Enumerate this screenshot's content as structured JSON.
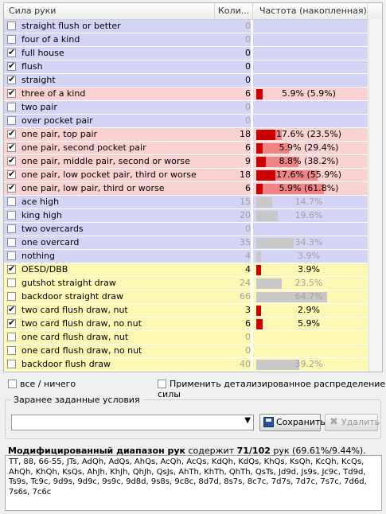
{
  "header": {
    "hand": "Сила руки",
    "count": "Коли...",
    "freq": "Частота (накопленная)"
  },
  "rows": [
    {
      "label": "straight flush or better",
      "checked": false,
      "count": "0",
      "freq": "",
      "bar": 0,
      "bg": "#d4d4f7",
      "barColor": "",
      "dim": true
    },
    {
      "label": "four of a kind",
      "checked": false,
      "count": "0",
      "freq": "",
      "bar": 0,
      "bg": "#d4d4f7",
      "barColor": "",
      "dim": true
    },
    {
      "label": "full house",
      "checked": true,
      "count": "0",
      "freq": "",
      "bar": 0,
      "bg": "#d4d4f7",
      "barColor": "",
      "dim": false
    },
    {
      "label": "flush",
      "checked": true,
      "count": "0",
      "freq": "",
      "bar": 0,
      "bg": "#d4d4f7",
      "barColor": "",
      "dim": false
    },
    {
      "label": "straight",
      "checked": true,
      "count": "0",
      "freq": "",
      "bar": 0,
      "bg": "#d4d4f7",
      "barColor": "",
      "dim": false
    },
    {
      "label": "three of a kind",
      "checked": true,
      "count": "6",
      "freq": "5.9% (5.9%)",
      "bar": 0.059,
      "bg": "#fbd2d2",
      "barColor": "#cc0000",
      "dim": false
    },
    {
      "label": "two pair",
      "checked": false,
      "count": "0",
      "freq": "",
      "bar": 0,
      "bg": "#d4d4f7",
      "barColor": "",
      "dim": true
    },
    {
      "label": "over pocket pair",
      "checked": false,
      "count": "0",
      "freq": "",
      "bar": 0,
      "bg": "#d4d4f7",
      "barColor": "",
      "dim": true
    },
    {
      "label": "one pair, top pair",
      "checked": true,
      "count": "18",
      "freq": "17.6% (23.5%)",
      "bar": 0.176,
      "cum": 0.235,
      "bg": "#fbd2d2",
      "barColor": "#cc0000",
      "dim": false
    },
    {
      "label": "one pair, second pocket pair",
      "checked": true,
      "count": "6",
      "freq": "5.9% (29.4%)",
      "bar": 0.059,
      "cum": 0.294,
      "bg": "#fbd2d2",
      "barColor": "#cc0000",
      "dim": false
    },
    {
      "label": "one pair, middle pair, second or worse",
      "checked": true,
      "count": "9",
      "freq": "8.8% (38.2%)",
      "bar": 0.088,
      "cum": 0.382,
      "bg": "#fbd2d2",
      "barColor": "#cc0000",
      "dim": false
    },
    {
      "label": "one pair, low pocket pair, third or worse",
      "checked": true,
      "count": "18",
      "freq": "17.6% (55.9%)",
      "bar": 0.176,
      "cum": 0.559,
      "bg": "#fbd2d2",
      "barColor": "#cc0000",
      "dim": false
    },
    {
      "label": "one pair, low pair, third or worse",
      "checked": true,
      "count": "6",
      "freq": "5.9% (61.8%)",
      "bar": 0.059,
      "cum": 0.618,
      "bg": "#fbd2d2",
      "barColor": "#cc0000",
      "dim": false
    },
    {
      "label": "ace high",
      "checked": false,
      "count": "15",
      "freq": "14.7%",
      "bar": 0.147,
      "bg": "#d4d4f7",
      "barColor": "#c8c8c8",
      "dim": true
    },
    {
      "label": "king high",
      "checked": false,
      "count": "20",
      "freq": "19.6%",
      "bar": 0.196,
      "bg": "#d4d4f7",
      "barColor": "#c8c8c8",
      "dim": true
    },
    {
      "label": "two overcards",
      "checked": false,
      "count": "0",
      "freq": "",
      "bar": 0,
      "bg": "#d4d4f7",
      "barColor": "",
      "dim": true
    },
    {
      "label": "one overcard",
      "checked": false,
      "count": "35",
      "freq": "34.3%",
      "bar": 0.343,
      "bg": "#d4d4f7",
      "barColor": "#c8c8c8",
      "dim": true
    },
    {
      "label": "nothing",
      "checked": false,
      "count": "4",
      "freq": "3.9%",
      "bar": 0.039,
      "bg": "#d4d4f7",
      "barColor": "#c8c8c8",
      "dim": true
    },
    {
      "label": "OESD/DBB",
      "checked": true,
      "count": "4",
      "freq": "3.9%",
      "bar": 0.039,
      "bg": "#fdf9b4",
      "barColor": "#cc0000",
      "dim": false
    },
    {
      "label": "gutshot straight draw",
      "checked": false,
      "count": "24",
      "freq": "23.5%",
      "bar": 0.235,
      "bg": "#fdf9b4",
      "barColor": "#c8c8c8",
      "dim": true
    },
    {
      "label": "backdoor straight draw",
      "checked": false,
      "count": "66",
      "freq": "64.7%",
      "bar": 0.647,
      "bg": "#fdf9b4",
      "barColor": "#c8c8c8",
      "dim": true
    },
    {
      "label": "two card flush draw, nut",
      "checked": true,
      "count": "3",
      "freq": "2.9%",
      "bar": 0.029,
      "bg": "#fdf9b4",
      "barColor": "#cc0000",
      "dim": false
    },
    {
      "label": "two card flush draw, no nut",
      "checked": true,
      "count": "6",
      "freq": "5.9%",
      "bar": 0.059,
      "bg": "#fdf9b4",
      "barColor": "#cc0000",
      "dim": false
    },
    {
      "label": "one card flush draw, nut",
      "checked": false,
      "count": "0",
      "freq": "",
      "bar": 0,
      "bg": "#fdf9b4",
      "barColor": "",
      "dim": true
    },
    {
      "label": "one card flush draw, no nut",
      "checked": false,
      "count": "0",
      "freq": "",
      "bar": 0,
      "bg": "#fdf9b4",
      "barColor": "",
      "dim": true
    },
    {
      "label": "backdoor flush draw",
      "checked": false,
      "count": "40",
      "freq": "39.2%",
      "bar": 0.392,
      "bg": "#fdf9b4",
      "barColor": "#c8c8c8",
      "dim": true
    }
  ],
  "options": {
    "all_none": "все / ничего",
    "detailed": "Применить детализированное распределение силы"
  },
  "preset": {
    "title": "Заранее заданные условия",
    "selected": "",
    "save": "Сохранить",
    "delete": "Удалить"
  },
  "range": {
    "title": "Модифицированный диапазон рук",
    "contains": " содержит ",
    "count": "71/102",
    "suffix": " рук (69.61%/9.44%).",
    "text": "TT, 88, 66-55, JTs, AdQh, AdQs, AhQs, AcQh, AcQs, KdQh, KdQs, KhQs, KsQh, KcQh, KcQs, AhQh, KhQh, KsQs, AhJh, KhJh, QhJh, QsJs, AhTh, KhTh, QhTh, QsTs, Jd9d, Js9s, Jc9c, Td9d, Ts9s, Tc9c, 9d9s, 9d9c, 9s9c, 9d8d, 9s8s, 9c8c, 8d7d, 8s7s, 8c7c, 7d7s, 7d7c, 7s7c, 7d6d, 7s6s, 7c6c"
  }
}
